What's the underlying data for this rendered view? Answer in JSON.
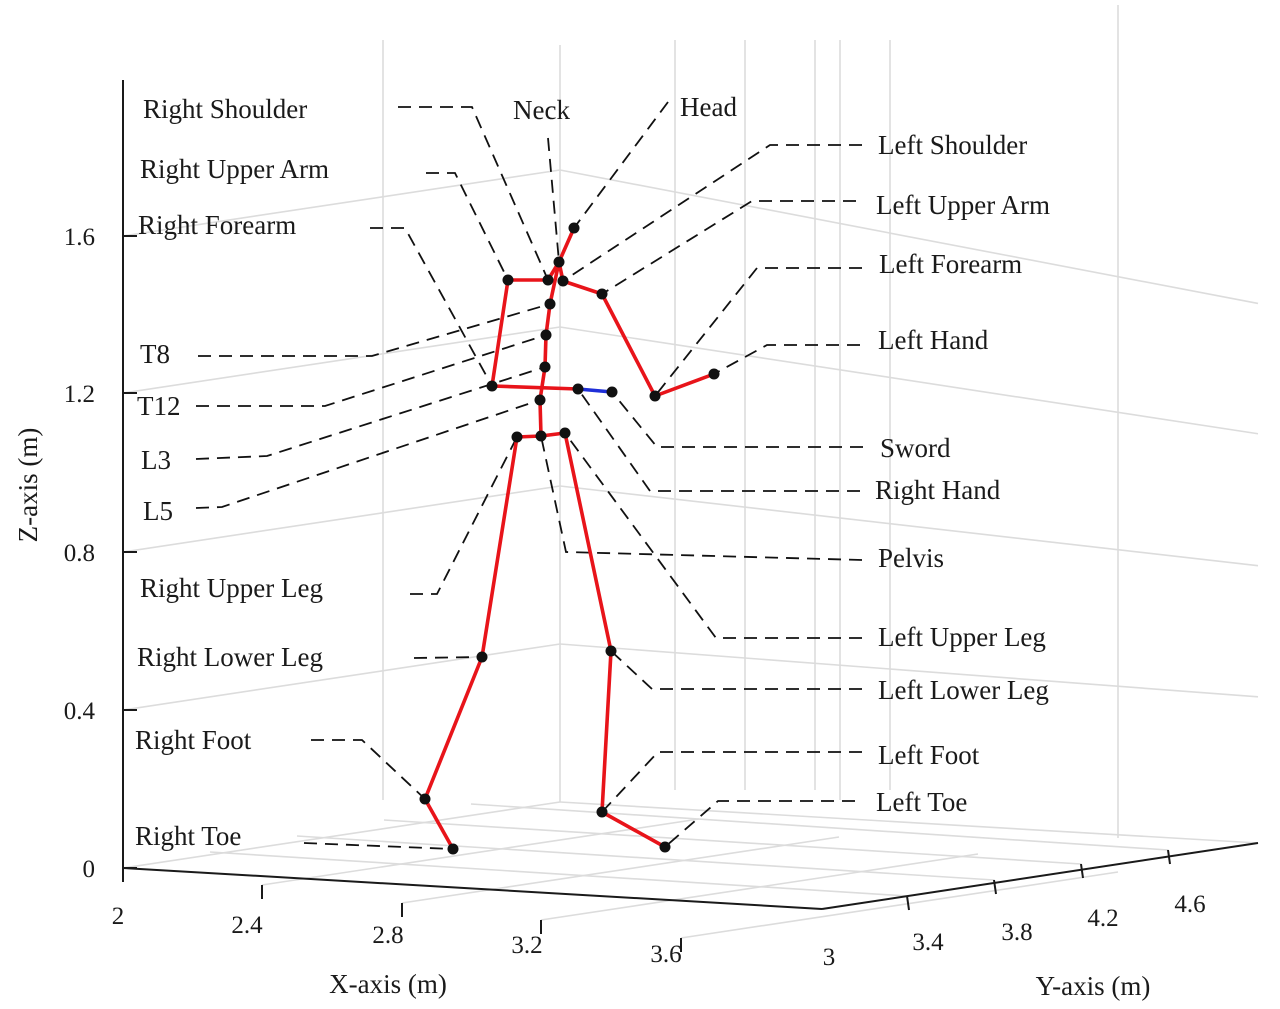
{
  "chart_data": {
    "type": "scatter",
    "subtype": "3d-skeleton",
    "xlabel": "X-axis (m)",
    "ylabel": "Y-axis (m)",
    "zlabel": "Z-axis (m)",
    "x_ticks": [
      "2",
      "2.4",
      "2.8",
      "3.2",
      "3.6",
      "3"
    ],
    "y_ticks": [
      "3.4",
      "3.8",
      "4.2",
      "4.6"
    ],
    "z_ticks": [
      "0",
      "0.4",
      "0.8",
      "1.2",
      "1.6"
    ],
    "grid": true,
    "colors": {
      "bones": "#e8141a",
      "sword": "#1f2fd8",
      "joints": "#111111"
    },
    "joints": [
      {
        "name": "Head"
      },
      {
        "name": "Neck"
      },
      {
        "name": "Right Shoulder"
      },
      {
        "name": "Left Shoulder"
      },
      {
        "name": "Right Upper Arm"
      },
      {
        "name": "Left Upper Arm"
      },
      {
        "name": "Right Forearm"
      },
      {
        "name": "Left Forearm"
      },
      {
        "name": "Right Hand"
      },
      {
        "name": "Left Hand"
      },
      {
        "name": "Sword"
      },
      {
        "name": "T8"
      },
      {
        "name": "T12"
      },
      {
        "name": "L3"
      },
      {
        "name": "L5"
      },
      {
        "name": "Pelvis"
      },
      {
        "name": "Right Upper Leg"
      },
      {
        "name": "Left Upper Leg"
      },
      {
        "name": "Right Lower Leg"
      },
      {
        "name": "Left Lower Leg"
      },
      {
        "name": "Right Foot"
      },
      {
        "name": "Left Foot"
      },
      {
        "name": "Right Toe"
      },
      {
        "name": "Left Toe"
      }
    ]
  }
}
